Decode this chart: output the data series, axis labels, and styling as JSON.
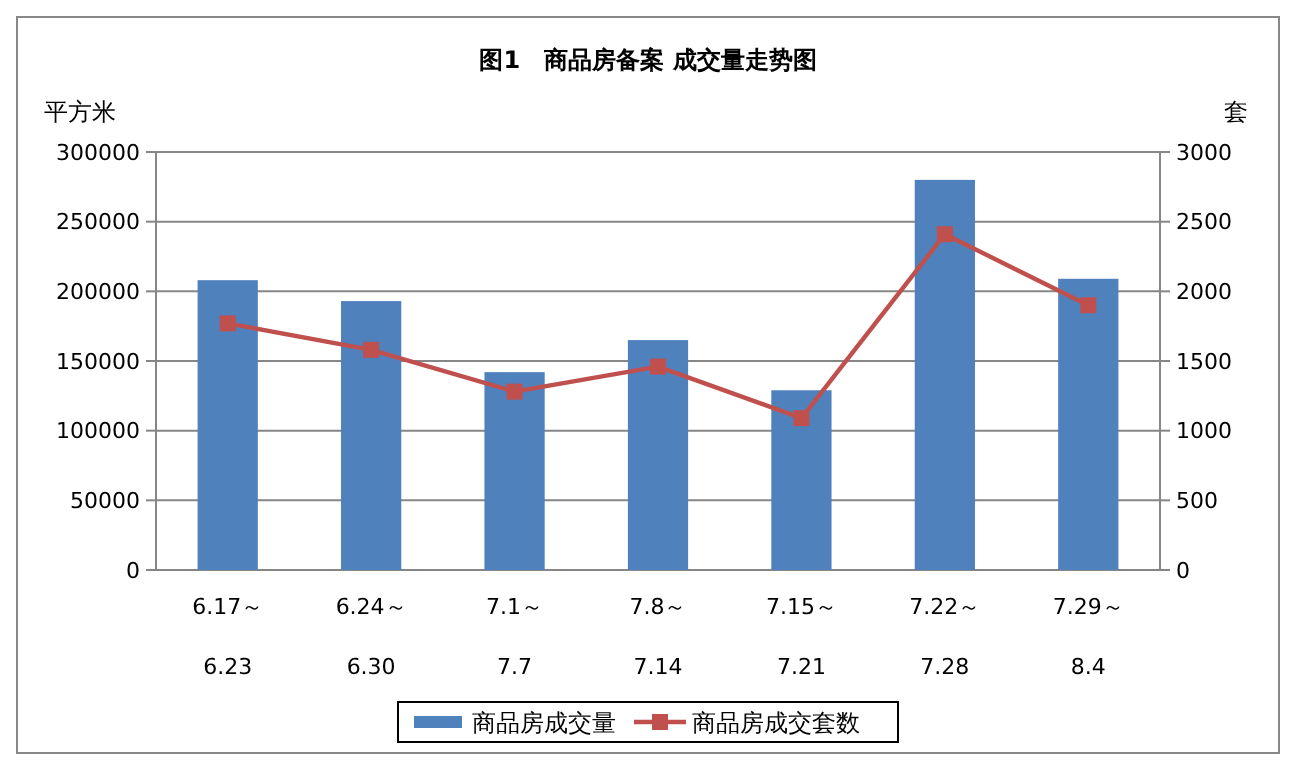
{
  "chart_data": {
    "type": "bar",
    "title": "图1　商品房备案 成交量走势图",
    "ylabel": "平方米",
    "y2label": "套",
    "categories": [
      "6.17～\n6.23",
      "6.24～\n6.30",
      "7.1～\n7.7",
      "7.8～\n7.14",
      "7.15～\n7.21",
      "7.22～\n7.28",
      "7.29～\n8.4"
    ],
    "series": [
      {
        "name": "商品房成交量",
        "color": "#4f81bd",
        "values": [
          208000,
          193000,
          142000,
          165000,
          129000,
          280000,
          209000
        ]
      },
      {
        "name": "商品房成交套数",
        "type": "line",
        "axis": "y2",
        "color": "#c0504d",
        "marker": "square",
        "values": [
          1770,
          1580,
          1280,
          1460,
          1090,
          2410,
          1900
        ]
      }
    ],
    "ylim": [
      0,
      300000
    ],
    "yticks": [
      0,
      50000,
      100000,
      150000,
      200000,
      250000,
      300000
    ],
    "y2lim": [
      0,
      3000
    ],
    "y2ticks": [
      0,
      500,
      1000,
      1500,
      2000,
      2500,
      3000
    ],
    "grid": "y",
    "legend": "bottom"
  }
}
